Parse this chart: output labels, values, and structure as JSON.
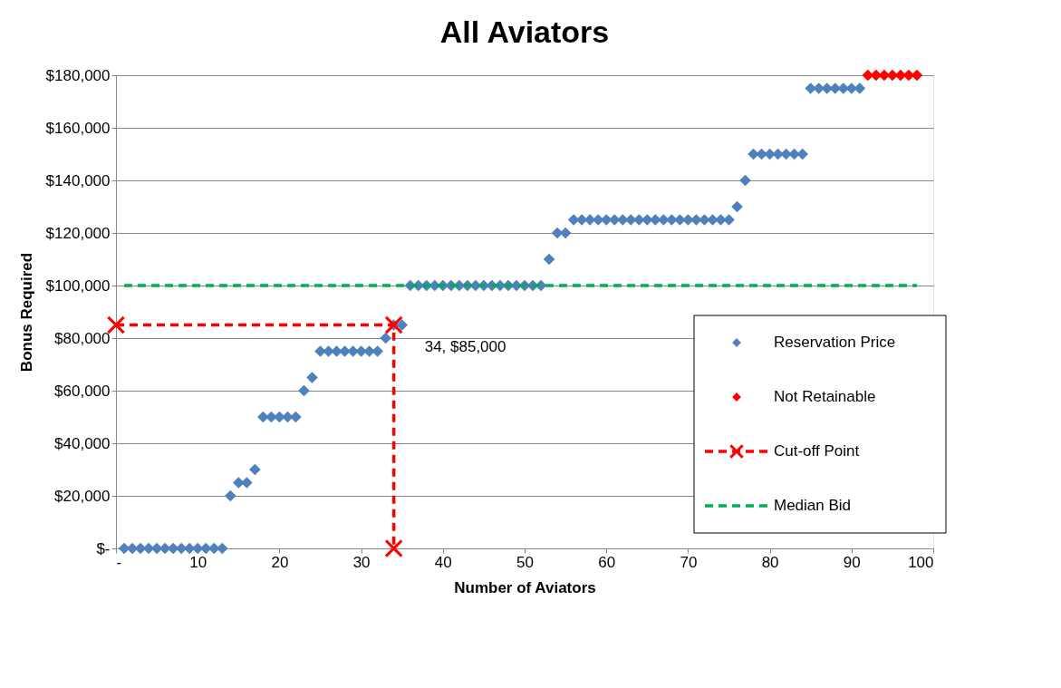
{
  "chart_data": {
    "type": "scatter",
    "title": "All Aviators",
    "xlabel": "Number of Aviators",
    "ylabel": "Bonus Required",
    "xlim": [
      0,
      100
    ],
    "xticks": [
      {
        "value": 0,
        "label": "-"
      },
      10,
      20,
      30,
      40,
      50,
      60,
      70,
      80,
      90,
      100
    ],
    "ylim": [
      0,
      180000
    ],
    "yticks": [
      {
        "value": 0,
        "label": "$-"
      },
      {
        "value": 20000,
        "label": "$20,000"
      },
      {
        "value": 40000,
        "label": "$40,000"
      },
      {
        "value": 60000,
        "label": "$60,000"
      },
      {
        "value": 80000,
        "label": "$80,000"
      },
      {
        "value": 100000,
        "label": "$100,000"
      },
      {
        "value": 120000,
        "label": "$120,000"
      },
      {
        "value": 140000,
        "label": "$140,000"
      },
      {
        "value": 160000,
        "label": "$160,000"
      },
      {
        "value": 180000,
        "label": "$180,000"
      }
    ],
    "grid": "y",
    "legend": "right",
    "series": [
      {
        "name": "Reservation Price",
        "marker": "diamond",
        "color": "#4f81bd",
        "x": [
          1,
          2,
          3,
          4,
          5,
          6,
          7,
          8,
          9,
          10,
          11,
          12,
          13,
          14,
          15,
          16,
          17,
          18,
          19,
          20,
          21,
          22,
          23,
          24,
          25,
          26,
          27,
          28,
          29,
          30,
          31,
          32,
          33,
          34,
          35,
          36,
          37,
          38,
          39,
          40,
          41,
          42,
          43,
          44,
          45,
          46,
          47,
          48,
          49,
          50,
          51,
          52,
          53,
          54,
          55,
          56,
          57,
          58,
          59,
          60,
          61,
          62,
          63,
          64,
          65,
          66,
          67,
          68,
          69,
          70,
          71,
          72,
          73,
          74,
          75,
          76,
          77,
          78,
          79,
          80,
          81,
          82,
          83,
          84,
          85,
          86,
          87,
          88,
          89,
          90,
          91
        ],
        "values": [
          0,
          0,
          0,
          0,
          0,
          0,
          0,
          0,
          0,
          0,
          0,
          0,
          0,
          20000,
          25000,
          25000,
          30000,
          50000,
          50000,
          50000,
          50000,
          50000,
          60000,
          65000,
          75000,
          75000,
          75000,
          75000,
          75000,
          75000,
          75000,
          75000,
          80000,
          85000,
          85000,
          100000,
          100000,
          100000,
          100000,
          100000,
          100000,
          100000,
          100000,
          100000,
          100000,
          100000,
          100000,
          100000,
          100000,
          100000,
          100000,
          100000,
          110000,
          120000,
          120000,
          125000,
          125000,
          125000,
          125000,
          125000,
          125000,
          125000,
          125000,
          125000,
          125000,
          125000,
          125000,
          125000,
          125000,
          125000,
          125000,
          125000,
          125000,
          125000,
          125000,
          130000,
          140000,
          150000,
          150000,
          150000,
          150000,
          150000,
          150000,
          150000,
          175000,
          175000,
          175000,
          175000,
          175000,
          175000,
          175000
        ]
      },
      {
        "name": "Not Retainable",
        "marker": "diamond",
        "color": "#ff0000",
        "x": [
          92,
          93,
          94,
          95,
          96,
          97,
          98
        ],
        "values": [
          180000,
          180000,
          180000,
          180000,
          180000,
          180000,
          180000
        ]
      },
      {
        "name": "Cut-off Point",
        "type": "line",
        "marker": "cross",
        "line_style": "dashed",
        "color": "#ff0000",
        "x": [
          0,
          34,
          34
        ],
        "values": [
          85000,
          85000,
          0
        ]
      },
      {
        "name": "Median Bid",
        "type": "line",
        "marker": "none",
        "line_style": "dashed",
        "color": "#00b050",
        "x": [
          1,
          98
        ],
        "values": [
          100000,
          100000
        ]
      }
    ],
    "annotations": [
      {
        "text": "34,  $85,000",
        "x": 34,
        "y": 85000
      }
    ]
  }
}
